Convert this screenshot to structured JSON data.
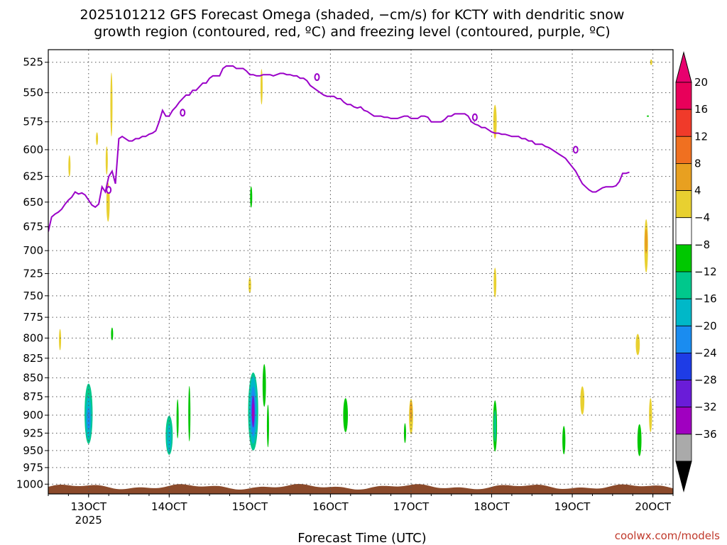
{
  "title": {
    "line1": "2025101212 GFS Forecast Omega (shaded, −cm/s) for KCTY with dendritic snow",
    "line2": "growth region (contoured, red, ºC) and freezing level (contoured, purple, ºC)"
  },
  "credit": {
    "text": "coolwx.com/models",
    "color": "#c0392b"
  },
  "chart_data": {
    "type": "heatmap",
    "xlabel": "Forecast Time (UTC)",
    "ylabel": "",
    "x_unit": "hours since 2025-10-12 12UTC",
    "xlim": [
      0,
      186
    ],
    "ylim_hpa": [
      1015,
      515
    ],
    "y_ticks": [
      525,
      550,
      575,
      600,
      625,
      650,
      675,
      700,
      725,
      750,
      775,
      800,
      825,
      850,
      875,
      900,
      925,
      950,
      975,
      1000
    ],
    "x_ticks": [
      {
        "x": 12,
        "label": "13OCT",
        "sub": "2025"
      },
      {
        "x": 36,
        "label": "14OCT",
        "sub": ""
      },
      {
        "x": 60,
        "label": "15OCT",
        "sub": ""
      },
      {
        "x": 84,
        "label": "16OCT",
        "sub": ""
      },
      {
        "x": 108,
        "label": "17OCT",
        "sub": ""
      },
      {
        "x": 132,
        "label": "18OCT",
        "sub": ""
      },
      {
        "x": 156,
        "label": "19OCT",
        "sub": ""
      },
      {
        "x": 180,
        "label": "20OCT",
        "sub": ""
      }
    ],
    "colorbar": {
      "labels": [
        "20",
        "16",
        "12",
        "8",
        "4",
        "−4",
        "−8",
        "−12",
        "−16",
        "−20",
        "−24",
        "−28",
        "−32",
        "−36"
      ],
      "colors": [
        "#e8005a",
        "#f03a2a",
        "#f07020",
        "#e8a020",
        "#e8d030",
        "#ffffff",
        "#00c800",
        "#00c88c",
        "#00b8c8",
        "#1a8cf0",
        "#1e3ce6",
        "#6a1cd8",
        "#a000c0",
        "#aaaaaa"
      ],
      "top_arrow_color": "#e8006e",
      "bottom_arrow_color": "#000000"
    },
    "freezing_level": {
      "color": "#9a00c8",
      "label": "0",
      "points": [
        [
          0,
          680
        ],
        [
          1,
          665
        ],
        [
          2,
          662
        ],
        [
          3,
          660
        ],
        [
          4,
          657
        ],
        [
          5,
          652
        ],
        [
          6,
          648
        ],
        [
          7,
          645
        ],
        [
          8,
          640
        ],
        [
          9,
          642
        ],
        [
          10,
          641
        ],
        [
          11,
          643
        ],
        [
          12,
          648
        ],
        [
          13,
          653
        ],
        [
          14,
          655
        ],
        [
          15,
          652
        ],
        [
          16,
          635
        ],
        [
          17,
          640
        ],
        [
          18,
          625
        ],
        [
          19,
          620
        ],
        [
          20,
          632
        ],
        [
          21,
          590
        ],
        [
          22,
          588
        ],
        [
          23,
          590
        ],
        [
          24,
          592
        ],
        [
          25,
          592
        ],
        [
          26,
          590
        ],
        [
          27,
          590
        ],
        [
          28,
          588
        ],
        [
          29,
          588
        ],
        [
          30,
          586
        ],
        [
          31,
          585
        ],
        [
          32,
          583
        ],
        [
          33,
          575
        ],
        [
          34,
          565
        ],
        [
          35,
          570
        ],
        [
          36,
          570
        ],
        [
          37,
          565
        ],
        [
          38,
          562
        ],
        [
          39,
          558
        ],
        [
          40,
          555
        ],
        [
          41,
          552
        ],
        [
          42,
          552
        ],
        [
          43,
          548
        ],
        [
          44,
          548
        ],
        [
          45,
          545
        ],
        [
          46,
          542
        ],
        [
          47,
          542
        ],
        [
          48,
          538
        ],
        [
          49,
          536
        ],
        [
          50,
          536
        ],
        [
          51,
          536
        ],
        [
          52,
          530
        ],
        [
          53,
          528
        ],
        [
          54,
          528
        ],
        [
          55,
          528
        ],
        [
          56,
          530
        ],
        [
          57,
          530
        ],
        [
          58,
          530
        ],
        [
          59,
          532
        ],
        [
          60,
          535
        ],
        [
          61,
          535
        ],
        [
          62,
          536
        ],
        [
          63,
          536
        ],
        [
          64,
          535
        ],
        [
          65,
          535
        ],
        [
          66,
          535
        ],
        [
          67,
          536
        ],
        [
          68,
          535
        ],
        [
          69,
          534
        ],
        [
          70,
          534
        ],
        [
          71,
          535
        ],
        [
          72,
          535
        ],
        [
          73,
          536
        ],
        [
          74,
          536
        ],
        [
          75,
          538
        ],
        [
          76,
          538
        ],
        [
          77,
          540
        ],
        [
          78,
          544
        ],
        [
          79,
          546
        ],
        [
          80,
          548
        ],
        [
          81,
          550
        ],
        [
          82,
          552
        ],
        [
          83,
          553
        ],
        [
          84,
          553
        ],
        [
          85,
          553
        ],
        [
          86,
          555
        ],
        [
          87,
          555
        ],
        [
          88,
          558
        ],
        [
          89,
          560
        ],
        [
          90,
          560
        ],
        [
          91,
          562
        ],
        [
          92,
          563
        ],
        [
          93,
          562
        ],
        [
          94,
          565
        ],
        [
          95,
          566
        ],
        [
          96,
          568
        ],
        [
          97,
          570
        ],
        [
          98,
          570
        ],
        [
          99,
          570
        ],
        [
          100,
          571
        ],
        [
          101,
          571
        ],
        [
          102,
          572
        ],
        [
          103,
          572
        ],
        [
          104,
          572
        ],
        [
          105,
          571
        ],
        [
          106,
          570
        ],
        [
          107,
          570
        ],
        [
          108,
          572
        ],
        [
          109,
          572
        ],
        [
          110,
          572
        ],
        [
          111,
          570
        ],
        [
          112,
          570
        ],
        [
          113,
          571
        ],
        [
          114,
          575
        ],
        [
          115,
          575
        ],
        [
          116,
          575
        ],
        [
          117,
          575
        ],
        [
          118,
          573
        ],
        [
          119,
          570
        ],
        [
          120,
          570
        ],
        [
          121,
          568
        ],
        [
          122,
          568
        ],
        [
          123,
          568
        ],
        [
          124,
          568
        ],
        [
          125,
          570
        ],
        [
          126,
          575
        ],
        [
          127,
          577
        ],
        [
          128,
          578
        ],
        [
          129,
          580
        ],
        [
          130,
          580
        ],
        [
          131,
          582
        ],
        [
          132,
          584
        ],
        [
          133,
          585
        ],
        [
          134,
          585
        ],
        [
          135,
          586
        ],
        [
          136,
          586
        ],
        [
          137,
          587
        ],
        [
          138,
          588
        ],
        [
          139,
          588
        ],
        [
          140,
          588
        ],
        [
          141,
          590
        ],
        [
          142,
          590
        ],
        [
          143,
          592
        ],
        [
          144,
          592
        ],
        [
          145,
          595
        ],
        [
          146,
          595
        ],
        [
          147,
          595
        ],
        [
          148,
          597
        ],
        [
          149,
          598
        ],
        [
          150,
          600
        ],
        [
          151,
          602
        ],
        [
          152,
          604
        ],
        [
          153,
          606
        ],
        [
          154,
          608
        ],
        [
          155,
          612
        ],
        [
          156,
          616
        ],
        [
          157,
          620
        ],
        [
          158,
          626
        ],
        [
          159,
          632
        ],
        [
          160,
          635
        ],
        [
          161,
          638
        ],
        [
          162,
          640
        ],
        [
          163,
          640
        ],
        [
          164,
          638
        ],
        [
          165,
          636
        ],
        [
          166,
          635
        ],
        [
          167,
          635
        ],
        [
          168,
          635
        ],
        [
          169,
          634
        ],
        [
          170,
          630
        ],
        [
          171,
          622
        ],
        [
          172,
          622
        ],
        [
          173,
          621
        ]
      ],
      "label_points": [
        [
          18,
          638
        ],
        [
          40,
          567
        ],
        [
          80,
          537
        ],
        [
          127,
          571
        ],
        [
          157,
          600
        ]
      ]
    },
    "omega_regions": [
      {
        "x": 12,
        "p": 898,
        "w": 2.4,
        "h": 85,
        "level": -8
      },
      {
        "x": 12,
        "p": 903,
        "w": 1.7,
        "h": 62,
        "level": -12
      },
      {
        "x": 12,
        "p": 905,
        "w": 1.0,
        "h": 32,
        "level": -16
      },
      {
        "x": 3.5,
        "p": 802,
        "w": 0.5,
        "h": 30,
        "level": 4
      },
      {
        "x": 19,
        "p": 795,
        "w": 0.4,
        "h": 18,
        "level": -4
      },
      {
        "x": 36,
        "p": 928,
        "w": 2.1,
        "h": 55,
        "level": -8
      },
      {
        "x": 36,
        "p": 932,
        "w": 1.3,
        "h": 40,
        "level": -12
      },
      {
        "x": 38.5,
        "p": 905,
        "w": 0.6,
        "h": 55,
        "level": -4
      },
      {
        "x": 42,
        "p": 898,
        "w": 0.5,
        "h": 78,
        "level": -4
      },
      {
        "x": 61,
        "p": 895,
        "w": 3.0,
        "h": 110,
        "level": -8
      },
      {
        "x": 61,
        "p": 893,
        "w": 2.3,
        "h": 95,
        "level": -12
      },
      {
        "x": 61,
        "p": 895,
        "w": 1.5,
        "h": 70,
        "level": -16
      },
      {
        "x": 61,
        "p": 895,
        "w": 0.9,
        "h": 45,
        "level": -24
      },
      {
        "x": 61,
        "p": 897,
        "w": 0.5,
        "h": 26,
        "level": -28
      },
      {
        "x": 64.3,
        "p": 860,
        "w": 1.0,
        "h": 60,
        "level": -4
      },
      {
        "x": 65.4,
        "p": 915,
        "w": 0.4,
        "h": 60,
        "level": -4
      },
      {
        "x": 88.5,
        "p": 900,
        "w": 1.4,
        "h": 48,
        "level": -4
      },
      {
        "x": 108,
        "p": 902,
        "w": 1.2,
        "h": 50,
        "level": 4
      },
      {
        "x": 108,
        "p": 895,
        "w": 0.7,
        "h": 28,
        "level": 8
      },
      {
        "x": 106.2,
        "p": 925,
        "w": 0.4,
        "h": 28,
        "level": -4
      },
      {
        "x": 133,
        "p": 915,
        "w": 1.2,
        "h": 72,
        "level": -4
      },
      {
        "x": 133,
        "p": 915,
        "w": 0.8,
        "h": 45,
        "level": -8
      },
      {
        "x": 153.5,
        "p": 935,
        "w": 0.9,
        "h": 40,
        "level": -4
      },
      {
        "x": 176,
        "p": 935,
        "w": 1.2,
        "h": 45,
        "level": -4
      },
      {
        "x": 159,
        "p": 880,
        "w": 1.2,
        "h": 40,
        "level": 4
      },
      {
        "x": 175.5,
        "p": 808,
        "w": 1.2,
        "h": 30,
        "level": 4
      },
      {
        "x": 179.3,
        "p": 900,
        "w": 0.9,
        "h": 48,
        "level": 4
      },
      {
        "x": 178,
        "p": 695,
        "w": 1.1,
        "h": 75,
        "level": 4
      },
      {
        "x": 178,
        "p": 690,
        "w": 0.8,
        "h": 35,
        "level": 8
      },
      {
        "x": 133,
        "p": 575,
        "w": 1.0,
        "h": 48,
        "level": 4
      },
      {
        "x": 133,
        "p": 735,
        "w": 0.8,
        "h": 42,
        "level": 4
      },
      {
        "x": 6.3,
        "p": 615,
        "w": 0.5,
        "h": 30,
        "level": 4
      },
      {
        "x": 14.5,
        "p": 590,
        "w": 0.3,
        "h": 18,
        "level": 4
      },
      {
        "x": 17.8,
        "p": 650,
        "w": 1.0,
        "h": 55,
        "level": 4
      },
      {
        "x": 18.8,
        "p": 560,
        "w": 0.6,
        "h": 90,
        "level": 4
      },
      {
        "x": 17.4,
        "p": 610,
        "w": 0.4,
        "h": 40,
        "level": 4
      },
      {
        "x": 60,
        "p": 738,
        "w": 0.8,
        "h": 22,
        "level": 4
      },
      {
        "x": 63.5,
        "p": 545,
        "w": 0.5,
        "h": 50,
        "level": 4
      },
      {
        "x": 60.4,
        "p": 645,
        "w": 0.5,
        "h": 30,
        "level": -4
      },
      {
        "x": 179.5,
        "p": 525,
        "w": 0.3,
        "h": 8,
        "level": 4
      },
      {
        "x": 178.5,
        "p": 570,
        "w": 0.5,
        "h": 2,
        "level": -4
      }
    ],
    "terrain_color": "#8b4a2b"
  }
}
